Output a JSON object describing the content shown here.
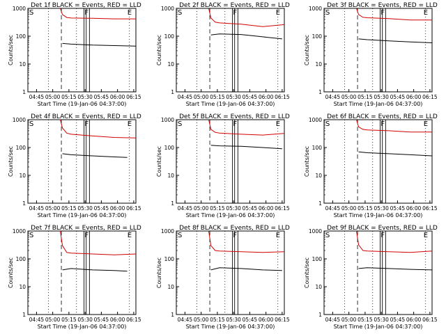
{
  "figure": {
    "ylabel": "Counts/sec",
    "xlabel": "Start Time (19-Jan-06 04:37:00)",
    "x_ticks": [
      "04:45",
      "05:00",
      "05:15",
      "05:30",
      "05:45",
      "06:00",
      "06:15"
    ],
    "y_ticks": [
      "1",
      "10",
      "100",
      "1000"
    ],
    "markers": {
      "s": "S",
      "f": "F",
      "e": "E"
    }
  },
  "chart_data": [
    {
      "type": "line",
      "title": "Det 1f BLACK = Events, RED = LLD",
      "x_unit": "minutes since 04:37:00",
      "xlim": [
        0,
        100
      ],
      "ylim": [
        1,
        1000
      ],
      "yscale": "log",
      "series": [
        {
          "name": "Events",
          "color": "#000000",
          "x": [
            0,
            32,
            40,
            60,
            80,
            100
          ],
          "y": [
            null,
            55,
            52,
            48,
            46,
            44
          ]
        },
        {
          "name": "LLD",
          "color": "#d00000",
          "x": [
            30,
            32,
            36,
            40,
            60,
            80,
            100
          ],
          "y": [
            1000,
            600,
            470,
            450,
            440,
            420,
            420
          ]
        }
      ]
    },
    {
      "type": "line",
      "title": "Det 2f BLACK = Events, RED = LLD",
      "x_unit": "minutes since 04:37:00",
      "xlim": [
        0,
        100
      ],
      "ylim": [
        1,
        1000
      ],
      "yscale": "log",
      "series": [
        {
          "name": "Events",
          "color": "#000000",
          "x": [
            32,
            40,
            60,
            80,
            98
          ],
          "y": [
            110,
            120,
            115,
            95,
            80
          ]
        },
        {
          "name": "LLD",
          "color": "#d00000",
          "x": [
            30,
            32,
            36,
            40,
            60,
            80,
            100
          ],
          "y": [
            1000,
            450,
            320,
            300,
            270,
            220,
            260
          ]
        }
      ]
    },
    {
      "type": "line",
      "title": "Det 3f BLACK = Events, RED = LLD",
      "x_unit": "minutes since 04:37:00",
      "xlim": [
        0,
        100
      ],
      "ylim": [
        1,
        1000
      ],
      "yscale": "log",
      "series": [
        {
          "name": "Events",
          "color": "#000000",
          "x": [
            32,
            40,
            60,
            80,
            100
          ],
          "y": [
            80,
            75,
            68,
            62,
            58
          ]
        },
        {
          "name": "LLD",
          "color": "#d00000",
          "x": [
            30,
            32,
            36,
            40,
            60,
            80,
            100
          ],
          "y": [
            1000,
            600,
            480,
            460,
            430,
            380,
            380
          ]
        }
      ]
    },
    {
      "type": "line",
      "title": "Det 4f BLACK = Events, RED = LLD",
      "x_unit": "minutes since 04:37:00",
      "xlim": [
        0,
        100
      ],
      "ylim": [
        1,
        1000
      ],
      "yscale": "log",
      "series": [
        {
          "name": "Events",
          "color": "#000000",
          "x": [
            32,
            40,
            60,
            80,
            92
          ],
          "y": [
            60,
            55,
            50,
            46,
            44
          ]
        },
        {
          "name": "LLD",
          "color": "#d00000",
          "x": [
            30,
            32,
            36,
            40,
            60,
            80,
            100
          ],
          "y": [
            1000,
            500,
            330,
            300,
            260,
            230,
            220
          ]
        }
      ]
    },
    {
      "type": "line",
      "title": "Det 5f BLACK = Events, RED = LLD",
      "x_unit": "minutes since 04:37:00",
      "xlim": [
        0,
        100
      ],
      "ylim": [
        1,
        1000
      ],
      "yscale": "log",
      "series": [
        {
          "name": "Events",
          "color": "#000000",
          "x": [
            32,
            40,
            60,
            80,
            98
          ],
          "y": [
            120,
            115,
            110,
            100,
            90
          ]
        },
        {
          "name": "LLD",
          "color": "#d00000",
          "x": [
            30,
            32,
            36,
            40,
            60,
            80,
            100
          ],
          "y": [
            1000,
            450,
            350,
            330,
            300,
            280,
            320
          ]
        }
      ]
    },
    {
      "type": "line",
      "title": "Det 6f BLACK = Events, RED = LLD",
      "x_unit": "minutes since 04:37:00",
      "xlim": [
        0,
        100
      ],
      "ylim": [
        1,
        1000
      ],
      "yscale": "log",
      "series": [
        {
          "name": "Events",
          "color": "#000000",
          "x": [
            32,
            40,
            60,
            80,
            100
          ],
          "y": [
            70,
            65,
            60,
            55,
            50
          ]
        },
        {
          "name": "LLD",
          "color": "#d00000",
          "x": [
            30,
            32,
            36,
            40,
            60,
            80,
            100
          ],
          "y": [
            1000,
            550,
            450,
            430,
            400,
            360,
            360
          ]
        }
      ]
    },
    {
      "type": "line",
      "title": "Det 7f BLACK = Events, RED = LLD",
      "x_unit": "minutes since 04:37:00",
      "xlim": [
        0,
        100
      ],
      "ylim": [
        1,
        1000
      ],
      "yscale": "log",
      "series": [
        {
          "name": "Events",
          "color": "#000000",
          "x": [
            32,
            40,
            60,
            80,
            92
          ],
          "y": [
            40,
            45,
            40,
            38,
            36
          ]
        },
        {
          "name": "LLD",
          "color": "#d00000",
          "x": [
            30,
            32,
            36,
            40,
            60,
            80,
            100
          ],
          "y": [
            1000,
            300,
            170,
            160,
            150,
            140,
            150
          ]
        }
      ]
    },
    {
      "type": "line",
      "title": "Det 8f BLACK = Events, RED = LLD",
      "x_unit": "minutes since 04:37:00",
      "xlim": [
        0,
        100
      ],
      "ylim": [
        1,
        1000
      ],
      "yscale": "log",
      "series": [
        {
          "name": "Events",
          "color": "#000000",
          "x": [
            32,
            40,
            60,
            80,
            98
          ],
          "y": [
            40,
            48,
            45,
            40,
            38
          ]
        },
        {
          "name": "LLD",
          "color": "#d00000",
          "x": [
            30,
            32,
            36,
            40,
            60,
            80,
            100
          ],
          "y": [
            1000,
            300,
            200,
            190,
            180,
            170,
            180
          ]
        }
      ]
    },
    {
      "type": "line",
      "title": "Det 9f BLACK = Events, RED = LLD",
      "x_unit": "minutes since 04:37:00",
      "xlim": [
        0,
        100
      ],
      "ylim": [
        1,
        1000
      ],
      "yscale": "log",
      "series": [
        {
          "name": "Events",
          "color": "#000000",
          "x": [
            32,
            40,
            60,
            80,
            100
          ],
          "y": [
            45,
            48,
            45,
            42,
            40
          ]
        },
        {
          "name": "LLD",
          "color": "#d00000",
          "x": [
            30,
            32,
            36,
            40,
            60,
            80,
            100
          ],
          "y": [
            1000,
            320,
            200,
            190,
            180,
            170,
            190
          ]
        }
      ]
    }
  ]
}
